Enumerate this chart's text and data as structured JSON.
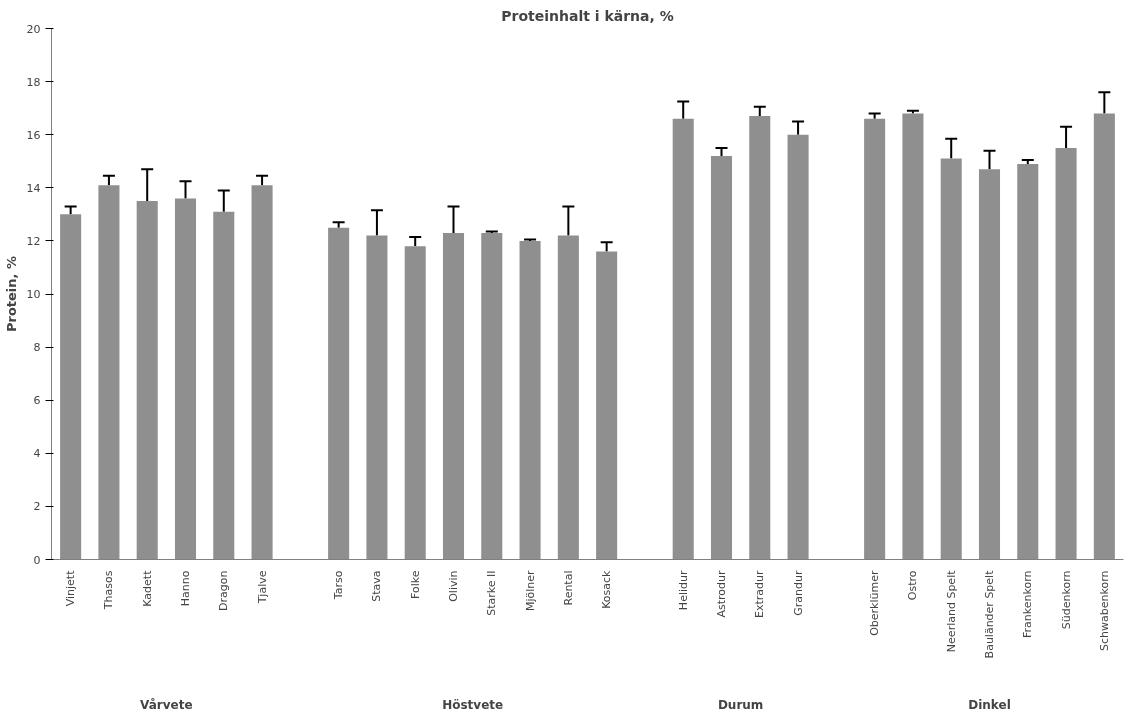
{
  "chart_data": {
    "type": "bar",
    "title": "Proteinhalt i kärna, %",
    "ylabel": "Protein, %",
    "categories": [
      "Vinjett",
      "Thasos",
      "Kadett",
      "Hanno",
      "Dragon",
      "Tjalve",
      null,
      "Tarso",
      "Stava",
      "Folke",
      "Olivin",
      "Starke II",
      "Mjölner",
      "Rental",
      "Kosack",
      null,
      "Helidur",
      "Astrodur",
      "Extradur",
      "Grandur",
      null,
      "Oberklümer",
      "Ostro",
      "Neerland Spelt",
      "Bauländer Spelt",
      "Frankenkorn",
      "Südenkorn",
      "Schwabenkorn"
    ],
    "values": [
      13.0,
      14.1,
      13.5,
      13.6,
      13.1,
      14.1,
      null,
      12.5,
      12.2,
      11.8,
      12.3,
      12.3,
      12.0,
      12.2,
      11.6,
      null,
      16.6,
      15.2,
      16.7,
      16.0,
      null,
      16.6,
      16.8,
      15.1,
      14.7,
      14.9,
      15.5,
      16.8
    ],
    "errors": [
      [
        13.0,
        13.3
      ],
      [
        14.1,
        14.45
      ],
      [
        13.5,
        14.7
      ],
      [
        13.6,
        14.25
      ],
      [
        13.1,
        13.9
      ],
      [
        14.1,
        14.45
      ],
      null,
      [
        12.5,
        12.7
      ],
      [
        12.2,
        13.15
      ],
      [
        11.8,
        12.15
      ],
      [
        12.3,
        13.3
      ],
      [
        12.3,
        12.35
      ],
      [
        12.0,
        12.05
      ],
      [
        12.2,
        13.3
      ],
      [
        11.6,
        11.95
      ],
      null,
      [
        16.6,
        17.25
      ],
      [
        15.2,
        15.5
      ],
      [
        16.7,
        17.05
      ],
      [
        16.0,
        16.5
      ],
      null,
      [
        16.6,
        16.8
      ],
      [
        16.8,
        16.9
      ],
      [
        15.1,
        15.85
      ],
      [
        14.7,
        15.4
      ],
      [
        14.9,
        15.05
      ],
      [
        15.5,
        16.3
      ],
      [
        16.8,
        17.6
      ]
    ],
    "color": "#8f8f8f",
    "ylim": [
      0,
      20
    ],
    "yticks": [
      0,
      2,
      4,
      6,
      8,
      10,
      12,
      14,
      16,
      18,
      20
    ],
    "annotations": [
      "Vårvete",
      "Höstvete",
      "Durum",
      "Dinkel"
    ]
  }
}
